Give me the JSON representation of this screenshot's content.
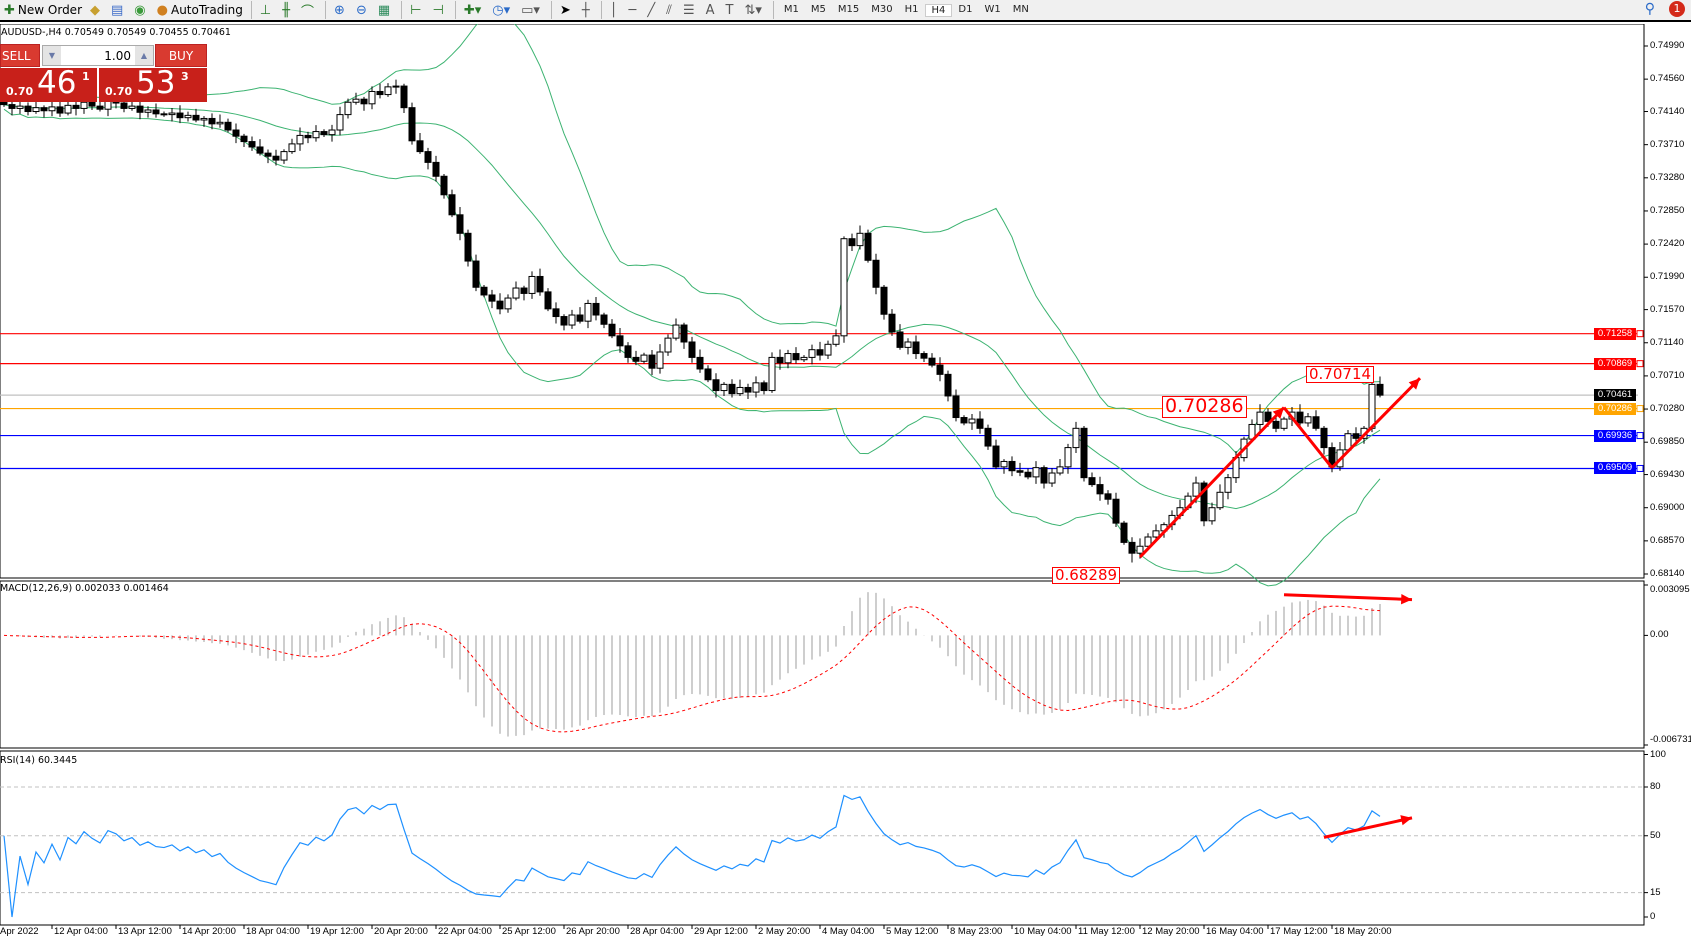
{
  "toolbar": {
    "items": [
      {
        "label": "New Order",
        "icon": "new-order-icon"
      },
      {
        "label": "",
        "icon": "history-center-icon"
      },
      {
        "label": "",
        "icon": "market-watch-icon"
      },
      {
        "label": "",
        "icon": "signals-icon"
      },
      {
        "label": "AutoTrading",
        "icon": "autotrading-icon"
      }
    ],
    "timeframes": [
      "M1",
      "M5",
      "M15",
      "M30",
      "H1",
      "H4",
      "D1",
      "W1",
      "MN"
    ],
    "active_timeframe": "H4",
    "notification_count": "1"
  },
  "chart": {
    "info": "AUDUSD-,H4  0.70549 0.70549 0.70455 0.70461",
    "symbol": "AUDUSD-",
    "timeframe": "H4",
    "price_ticks": [
      "0.74990",
      "0.74560",
      "0.74140",
      "0.73710",
      "0.73280",
      "0.72850",
      "0.72420",
      "0.71990",
      "0.71570",
      "0.71140",
      "0.70710",
      "0.70280",
      "0.69850",
      "0.69430",
      "0.69000",
      "0.68570",
      "0.68140"
    ],
    "price_range": [
      0.6814,
      0.7499
    ],
    "hlines": [
      {
        "price": "0.71258",
        "color": "#ff0000"
      },
      {
        "price": "0.70869",
        "color": "#ff0000"
      },
      {
        "price": "0.70461",
        "color": "#c0c0c0",
        "tag_color": "#000000"
      },
      {
        "price": "0.70286",
        "color": "#ffa500"
      },
      {
        "price": "0.69936",
        "color": "#0000ff"
      },
      {
        "price": "0.69509",
        "color": "#0000ff"
      }
    ],
    "price_labels": [
      {
        "text": "0.68289",
        "bar": 141,
        "price": 0.68289
      },
      {
        "text": "0.70286",
        "bar": 158,
        "price": 0.70286
      },
      {
        "text": "0.70714",
        "bar": 171,
        "price": 0.70714
      }
    ],
    "trend_arrows": [
      {
        "from": [
          142,
          0.6836
        ],
        "to": [
          160,
          0.703
        ]
      },
      {
        "from": [
          160,
          0.703
        ],
        "to": [
          166,
          0.6952
        ]
      },
      {
        "from": [
          166,
          0.6952
        ],
        "to": [
          177,
          0.7068
        ]
      }
    ],
    "closes": [
      0.7423,
      0.7418,
      0.7421,
      0.7414,
      0.7419,
      0.7415,
      0.742,
      0.7412,
      0.7422,
      0.7418,
      0.7426,
      0.7421,
      0.7417,
      0.7428,
      0.7425,
      0.7418,
      0.7421,
      0.7413,
      0.7416,
      0.7411,
      0.741,
      0.7412,
      0.7406,
      0.7409,
      0.7403,
      0.7405,
      0.7398,
      0.74,
      0.739,
      0.7382,
      0.7375,
      0.7368,
      0.736,
      0.7356,
      0.7351,
      0.7362,
      0.7372,
      0.7383,
      0.738,
      0.7388,
      0.7384,
      0.739,
      0.741,
      0.7426,
      0.743,
      0.7424,
      0.744,
      0.7436,
      0.7446,
      0.7447,
      0.7419,
      0.7376,
      0.7362,
      0.7348,
      0.733,
      0.7306,
      0.728,
      0.7256,
      0.722,
      0.7186,
      0.7176,
      0.7168,
      0.7158,
      0.7172,
      0.7185,
      0.7178,
      0.72,
      0.718,
      0.7158,
      0.7148,
      0.7137,
      0.715,
      0.7142,
      0.7165,
      0.715,
      0.7138,
      0.7123,
      0.711,
      0.7095,
      0.709,
      0.7098,
      0.7081,
      0.7102,
      0.712,
      0.7137,
      0.7115,
      0.7095,
      0.708,
      0.7066,
      0.7052,
      0.706,
      0.7048,
      0.7056,
      0.705,
      0.7062,
      0.7052,
      0.7095,
      0.7088,
      0.71,
      0.7092,
      0.7095,
      0.7105,
      0.7098,
      0.7112,
      0.7123,
      0.7249,
      0.724,
      0.7256,
      0.7221,
      0.7186,
      0.7151,
      0.7128,
      0.7108,
      0.7115,
      0.71,
      0.7094,
      0.7085,
      0.7073,
      0.7045,
      0.7017,
      0.701,
      0.7015,
      0.7003,
      0.698,
      0.6953,
      0.696,
      0.6948,
      0.6946,
      0.694,
      0.6952,
      0.6932,
      0.6945,
      0.6953,
      0.6978,
      0.7003,
      0.6939,
      0.693,
      0.6918,
      0.6911,
      0.688,
      0.6855,
      0.6841,
      0.685,
      0.6862,
      0.687,
      0.6878,
      0.689,
      0.69,
      0.6915,
      0.6932,
      0.6883,
      0.69,
      0.692,
      0.6939,
      0.6965,
      0.6989,
      0.7008,
      0.7024,
      0.7012,
      0.7003,
      0.7015,
      0.7024,
      0.701,
      0.7018,
      0.7003,
      0.6978,
      0.6953,
      0.6975,
      0.6996,
      0.699,
      0.7003,
      0.706,
      0.70461
    ],
    "time_labels": [
      "Apr 2022",
      "12 Apr 04:00",
      "13 Apr 12:00",
      "14 Apr 20:00",
      "18 Apr 04:00",
      "19 Apr 12:00",
      "20 Apr 20:00",
      "22 Apr 04:00",
      "25 Apr 12:00",
      "26 Apr 20:00",
      "28 Apr 04:00",
      "29 Apr 12:00",
      "2 May 20:00",
      "4 May 04:00",
      "5 May 12:00",
      "8 May 23:00",
      "10 May 04:00",
      "11 May 12:00",
      "12 May 20:00",
      "16 May 04:00",
      "17 May 12:00",
      "18 May 20:00"
    ],
    "bollinger_color": "#3cb371"
  },
  "trade_panel": {
    "sell_label": "SELL",
    "buy_label": "BUY",
    "lot": "1.00",
    "sell_prefix": "0.70",
    "sell_big": "46",
    "sell_sup": "1",
    "buy_prefix": "0.70",
    "buy_big": "53",
    "buy_sup": "3",
    "color": "#c8201a"
  },
  "macd": {
    "label": "MACD(12,26,9) 0.002033 0.001464",
    "ticks": [
      "0.003095",
      "0.00",
      "-0.006731"
    ],
    "range": [
      -0.006731,
      0.003095
    ],
    "arrow": {
      "from": [
        160,
        0.0025
      ],
      "to": [
        176,
        0.0022
      ]
    }
  },
  "rsi": {
    "label": "RSI(14) 60.3445",
    "ticks": [
      "100",
      "80",
      "50",
      "15",
      "0"
    ],
    "levels": [
      80,
      50,
      15
    ],
    "line_color": "#1e90ff",
    "arrow": {
      "from": [
        165,
        49
      ],
      "to": [
        176,
        61
      ]
    }
  }
}
